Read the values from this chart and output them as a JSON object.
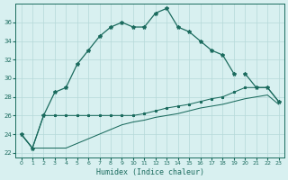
{
  "xlabel": "Humidex (Indice chaleur)",
  "x_values": [
    0,
    1,
    2,
    3,
    4,
    5,
    6,
    7,
    8,
    9,
    10,
    11,
    12,
    13,
    14,
    15,
    16,
    17,
    18,
    19,
    20,
    21,
    22,
    23
  ],
  "main_curve": [
    24.0,
    22.5,
    26.0,
    28.5,
    29.0,
    31.5,
    33.0,
    34.5,
    35.5,
    36.0,
    35.5,
    35.5,
    37.0,
    37.5,
    35.5,
    35.0,
    34.0,
    33.0,
    32.5,
    30.5,
    null,
    null,
    null,
    null
  ],
  "upper_right": [
    null,
    null,
    null,
    null,
    null,
    null,
    null,
    null,
    null,
    null,
    null,
    null,
    null,
    null,
    null,
    null,
    null,
    null,
    null,
    null,
    30.5,
    29.0,
    29.0,
    27.5
  ],
  "mid_curve": [
    null,
    null,
    null,
    null,
    null,
    null,
    null,
    null,
    null,
    null,
    null,
    null,
    null,
    null,
    null,
    null,
    null,
    null,
    null,
    null,
    30.5,
    29.0,
    29.0,
    27.5
  ],
  "lower_upper": [
    24.0,
    22.5,
    26.0,
    26.0,
    26.0,
    26.0,
    26.0,
    26.0,
    26.0,
    26.0,
    26.0,
    26.2,
    26.5,
    26.8,
    27.0,
    27.2,
    27.5,
    27.8,
    28.0,
    28.5,
    29.0,
    29.0,
    29.0,
    27.5
  ],
  "lower_bottom": [
    24.0,
    22.5,
    22.5,
    22.5,
    22.5,
    23.0,
    23.5,
    24.0,
    24.5,
    25.0,
    25.3,
    25.5,
    25.8,
    26.0,
    26.2,
    26.5,
    26.8,
    27.0,
    27.2,
    27.5,
    27.8,
    28.0,
    28.2,
    27.2
  ],
  "color": "#1b6b5e",
  "bg_color": "#d8f0f0",
  "grid_color": "#b5d9d9",
  "ylim": [
    21.5,
    38.0
  ],
  "xlim": [
    -0.5,
    23.5
  ],
  "yticks": [
    22,
    24,
    26,
    28,
    30,
    32,
    34,
    36
  ],
  "xticks": [
    0,
    1,
    2,
    3,
    4,
    5,
    6,
    7,
    8,
    9,
    10,
    11,
    12,
    13,
    14,
    15,
    16,
    17,
    18,
    19,
    20,
    21,
    22,
    23
  ]
}
